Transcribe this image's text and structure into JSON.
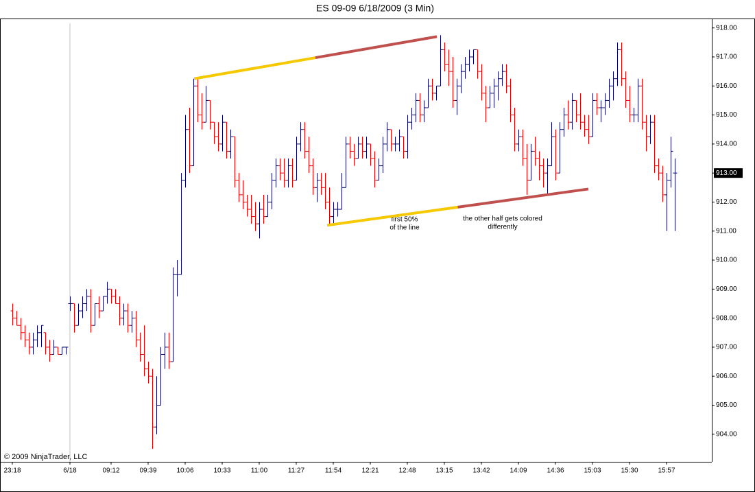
{
  "chart_data": {
    "type": "ohlc",
    "title": "ES 09-09  6/18/2009 (3 Min)",
    "copyright": "© 2009 NinjaTrader, LLC",
    "up_color": "#000066",
    "down_color": "#e00000",
    "ylim": [
      903.05,
      918.3
    ],
    "yticks": [
      {
        "value": 904,
        "label": "904.00"
      },
      {
        "value": 905,
        "label": "905.00"
      },
      {
        "value": 906,
        "label": "906.00"
      },
      {
        "value": 907,
        "label": "907.00"
      },
      {
        "value": 908,
        "label": "908.00"
      },
      {
        "value": 909,
        "label": "909.00"
      },
      {
        "value": 910,
        "label": "910.00"
      },
      {
        "value": 911,
        "label": "911.00"
      },
      {
        "value": 912,
        "label": "912.00"
      },
      {
        "value": 913,
        "label": "913.00"
      },
      {
        "value": 914,
        "label": "914.00"
      },
      {
        "value": 915,
        "label": "915.00"
      },
      {
        "value": 916,
        "label": "916.00"
      },
      {
        "value": 917,
        "label": "917.00"
      },
      {
        "value": 918,
        "label": "918.00"
      }
    ],
    "xticks": [
      {
        "value": 0,
        "label": "23:18"
      },
      {
        "value": 14,
        "label": "6/18"
      },
      {
        "value": 24,
        "label": "09:12"
      },
      {
        "value": 33,
        "label": "09:39"
      },
      {
        "value": 42,
        "label": "10:06"
      },
      {
        "value": 51,
        "label": "10:33"
      },
      {
        "value": 60,
        "label": "11:00"
      },
      {
        "value": 69,
        "label": "11:27"
      },
      {
        "value": 78,
        "label": "11:54"
      },
      {
        "value": 87,
        "label": "12:21"
      },
      {
        "value": 96,
        "label": "12:48"
      },
      {
        "value": 105,
        "label": "13:15"
      },
      {
        "value": 114,
        "label": "13:42"
      },
      {
        "value": 123,
        "label": "14:09"
      },
      {
        "value": 132,
        "label": "14:36"
      },
      {
        "value": 141,
        "label": "15:03"
      },
      {
        "value": 150,
        "label": "15:30"
      },
      {
        "value": 159,
        "label": "15:57"
      }
    ],
    "session_break": 14,
    "last_price": {
      "value": 913,
      "label": "913.00"
    },
    "ohlc": [
      [
        908.25,
        908.5,
        907.75,
        908
      ],
      [
        908,
        908.25,
        907.75,
        907.75
      ],
      [
        907.75,
        908,
        907.25,
        907.5
      ],
      [
        907.5,
        907.75,
        907,
        907.25
      ],
      [
        907.25,
        907.5,
        906.75,
        907
      ],
      [
        907,
        907.5,
        906.75,
        907.25
      ],
      [
        907.25,
        907.75,
        907,
        907.5
      ],
      [
        907.5,
        907.75,
        907,
        907.75
      ],
      [
        907.5,
        907.5,
        906.75,
        907
      ],
      [
        907,
        907.25,
        906.5,
        906.75
      ],
      [
        906.75,
        907.25,
        906.75,
        907
      ],
      [
        907,
        907,
        906.75,
        906.75
      ],
      [
        906.75,
        907,
        906.75,
        907
      ],
      [
        907,
        907,
        906.75,
        907
      ],
      [
        908.5,
        908.75,
        908.25,
        908.5
      ],
      [
        908.5,
        908.5,
        907.5,
        907.75
      ],
      [
        907.75,
        908.5,
        907.75,
        908.25
      ],
      [
        908.25,
        908.75,
        908,
        908.5
      ],
      [
        908.5,
        909,
        908.25,
        908.75
      ],
      [
        908.75,
        909,
        907.5,
        907.75
      ],
      [
        907.75,
        908.5,
        907.75,
        908.5
      ],
      [
        908.5,
        908.75,
        908,
        908.25
      ],
      [
        908.25,
        908.75,
        908.25,
        908.75
      ],
      [
        908.75,
        909.25,
        908.5,
        909
      ],
      [
        909,
        909,
        908.5,
        908.75
      ],
      [
        908.75,
        909,
        908.5,
        908.5
      ],
      [
        908.5,
        908.75,
        907.75,
        908
      ],
      [
        908,
        908.5,
        907.75,
        908.25
      ],
      [
        908.25,
        908.5,
        907.5,
        907.75
      ],
      [
        907.75,
        908.25,
        907.5,
        908
      ],
      [
        908,
        908.25,
        907,
        907.25
      ],
      [
        907.25,
        907.5,
        906.5,
        906.75
      ],
      [
        906.75,
        907.75,
        906,
        906.25
      ],
      [
        906.25,
        906.5,
        905.75,
        906
      ],
      [
        906,
        906.25,
        903.5,
        904.25
      ],
      [
        904.25,
        906,
        904,
        905
      ],
      [
        905,
        907,
        905,
        906.75
      ],
      [
        906.75,
        907.5,
        906.25,
        907
      ],
      [
        907,
        907.5,
        906.25,
        906.5
      ],
      [
        906.5,
        909.75,
        906.5,
        909.5
      ],
      [
        909.5,
        910,
        908.75,
        909.5
      ],
      [
        909.5,
        913,
        909.5,
        912.75
      ],
      [
        912.75,
        915,
        912.5,
        914.5
      ],
      [
        914.5,
        915.25,
        913,
        913.25
      ],
      [
        913.25,
        916.25,
        913.25,
        916
      ],
      [
        916,
        916.25,
        914.75,
        915
      ],
      [
        915,
        915.75,
        914.5,
        914.75
      ],
      [
        914.75,
        916,
        914.75,
        915.5
      ],
      [
        915.5,
        915.5,
        914.5,
        914.75
      ],
      [
        914.75,
        914.75,
        914,
        914.25
      ],
      [
        914.25,
        914.75,
        913.75,
        914
      ],
      [
        914,
        915,
        913.75,
        914.75
      ],
      [
        914.75,
        914.75,
        913.5,
        913.75
      ],
      [
        913.75,
        914.5,
        913.5,
        914.25
      ],
      [
        914.25,
        914.25,
        912.5,
        912.75
      ],
      [
        912.75,
        913,
        912,
        912.25
      ],
      [
        912.25,
        912.75,
        911.75,
        912
      ],
      [
        912,
        912.25,
        911.5,
        911.75
      ],
      [
        911.75,
        912.25,
        911.25,
        911.5
      ],
      [
        911.5,
        912,
        911,
        911.25
      ],
      [
        911.25,
        912,
        910.75,
        911.75
      ],
      [
        911.75,
        912.25,
        911.25,
        911.5
      ],
      [
        911.5,
        912.25,
        911.5,
        912
      ],
      [
        912,
        913,
        911.75,
        912.75
      ],
      [
        912.75,
        913.5,
        912.5,
        913.25
      ],
      [
        913.25,
        913.5,
        912.75,
        913
      ],
      [
        913,
        913.5,
        912.5,
        912.75
      ],
      [
        912.75,
        913.5,
        912.5,
        913.25
      ],
      [
        913.25,
        913.5,
        912.5,
        912.75
      ],
      [
        912.75,
        914.25,
        912.75,
        914
      ],
      [
        914,
        914.75,
        913.75,
        914.5
      ],
      [
        914.5,
        914.75,
        913.5,
        913.75
      ],
      [
        913.75,
        914.25,
        913,
        913.25
      ],
      [
        913.25,
        913.5,
        912.25,
        912.5
      ],
      [
        912.5,
        913,
        912,
        912.75
      ],
      [
        912.75,
        913,
        912.25,
        912.5
      ],
      [
        912.5,
        913,
        911.75,
        912
      ],
      [
        912,
        912.5,
        911.25,
        911.5
      ],
      [
        911.5,
        912,
        911.25,
        911.75
      ],
      [
        911.75,
        912,
        911.5,
        911.75
      ],
      [
        911.75,
        913,
        911.75,
        912.5
      ],
      [
        912.5,
        914.25,
        912.5,
        914
      ],
      [
        914,
        914.25,
        913.5,
        913.75
      ],
      [
        913.75,
        914,
        913.25,
        913.5
      ],
      [
        913.5,
        914.25,
        913.5,
        914
      ],
      [
        914,
        914.25,
        913.5,
        913.75
      ],
      [
        913.75,
        914.25,
        913.5,
        914
      ],
      [
        914,
        914,
        913.25,
        913.5
      ],
      [
        913.5,
        913.75,
        912.5,
        912.75
      ],
      [
        912.75,
        913.5,
        912.75,
        913.25
      ],
      [
        913.25,
        914.25,
        913,
        914
      ],
      [
        914,
        914.75,
        913.75,
        914.5
      ],
      [
        914.5,
        914.5,
        913.75,
        914
      ],
      [
        914,
        914.25,
        913.75,
        914
      ],
      [
        914,
        914.5,
        913.75,
        914.25
      ],
      [
        914.25,
        914.25,
        913.5,
        913.75
      ],
      [
        913.75,
        915,
        913.5,
        914.75
      ],
      [
        914.75,
        915.25,
        914.5,
        915
      ],
      [
        915,
        915.75,
        914.75,
        915.5
      ],
      [
        915.5,
        915.75,
        914.75,
        915
      ],
      [
        915,
        915.5,
        914.75,
        915.25
      ],
      [
        915.25,
        916.25,
        915.25,
        916
      ],
      [
        916,
        916.25,
        915.5,
        915.75
      ],
      [
        915.75,
        916,
        915.5,
        916
      ],
      [
        916,
        917.75,
        916,
        917.25
      ],
      [
        917.25,
        917.5,
        916.5,
        916.75
      ],
      [
        916.75,
        917.25,
        916,
        916.5
      ],
      [
        916.5,
        917,
        915.25,
        915.5
      ],
      [
        915.5,
        916.25,
        915,
        916
      ],
      [
        916,
        916.75,
        915.75,
        916.5
      ],
      [
        916.5,
        917,
        916.25,
        916.75
      ],
      [
        916.75,
        917.25,
        916.5,
        917
      ],
      [
        917,
        917.25,
        916.75,
        917.25
      ],
      [
        917.25,
        917.25,
        916.25,
        916.5
      ],
      [
        916.5,
        916.75,
        915.5,
        915.75
      ],
      [
        915.75,
        916,
        914.75,
        915.25
      ],
      [
        915.25,
        916,
        915.25,
        915.75
      ],
      [
        915.75,
        916.25,
        915.25,
        916
      ],
      [
        916,
        916.5,
        915.5,
        916.25
      ],
      [
        916.25,
        916.75,
        916,
        916.5
      ],
      [
        916.5,
        916.75,
        915.75,
        916
      ],
      [
        916,
        916.25,
        914.75,
        915
      ],
      [
        915,
        915.25,
        913.75,
        914
      ],
      [
        914,
        914.5,
        913.75,
        914.25
      ],
      [
        914.25,
        914.5,
        913.25,
        913.5
      ],
      [
        913.5,
        914,
        912.25,
        912.75
      ],
      [
        912.75,
        914,
        912.75,
        913.75
      ],
      [
        913.75,
        914.25,
        913.25,
        913.5
      ],
      [
        913.5,
        913.75,
        912.75,
        913.25
      ],
      [
        913.25,
        913.5,
        912.5,
        913
      ],
      [
        913,
        913.5,
        912.25,
        913.25
      ],
      [
        913.25,
        914.75,
        913.25,
        914.25
      ],
      [
        914.25,
        914.5,
        912.75,
        913
      ],
      [
        913,
        914.75,
        913,
        914.5
      ],
      [
        914.5,
        915.25,
        914.25,
        915
      ],
      [
        915,
        915.5,
        914.5,
        914.75
      ],
      [
        914.75,
        915.75,
        914.5,
        915.5
      ],
      [
        915.5,
        915.5,
        914.75,
        915
      ],
      [
        915,
        915.75,
        914.5,
        914.75
      ],
      [
        914.75,
        915,
        914.25,
        914.5
      ],
      [
        914.5,
        915,
        914,
        914.25
      ],
      [
        914.25,
        915.75,
        914.25,
        915.5
      ],
      [
        915.5,
        915.75,
        915,
        915.25
      ],
      [
        915.25,
        915.5,
        914.75,
        915.25
      ],
      [
        915.25,
        915.75,
        915,
        915.5
      ],
      [
        915.5,
        916.25,
        915.25,
        916
      ],
      [
        916,
        916.5,
        915.5,
        916.25
      ],
      [
        916.25,
        917.5,
        916,
        917.25
      ],
      [
        917.25,
        917.5,
        916,
        916.25
      ],
      [
        916.25,
        916.5,
        915.25,
        915.5
      ],
      [
        915.5,
        916,
        914.75,
        915
      ],
      [
        915,
        915.25,
        914.75,
        915
      ],
      [
        915,
        916.25,
        914.75,
        916
      ],
      [
        916,
        916.25,
        914.5,
        914.75
      ],
      [
        914.75,
        915,
        913.75,
        914.25
      ],
      [
        914.25,
        915,
        914,
        914.75
      ],
      [
        914.75,
        915,
        913,
        913.25
      ],
      [
        913.25,
        913.5,
        912.75,
        913
      ],
      [
        913,
        913.25,
        912,
        912.25
      ],
      [
        912.25,
        913,
        911,
        912.75
      ],
      [
        912.75,
        914.25,
        912.5,
        913.75
      ],
      [
        913,
        913.5,
        911,
        913
      ]
    ],
    "trend_lines": [
      {
        "start": [
          44.17,
          916.25
        ],
        "end": [
          103.17,
          917.7
        ],
        "colors": [
          "#f5c800",
          "#c0504d"
        ]
      },
      {
        "start": [
          76.5,
          911.2
        ],
        "end": [
          140,
          912.45
        ],
        "colors": [
          "#f5c800",
          "#c0504d"
        ]
      }
    ],
    "annotations": [
      "first 50%",
      "of the line",
      "the other half gets colored",
      "differently"
    ]
  }
}
